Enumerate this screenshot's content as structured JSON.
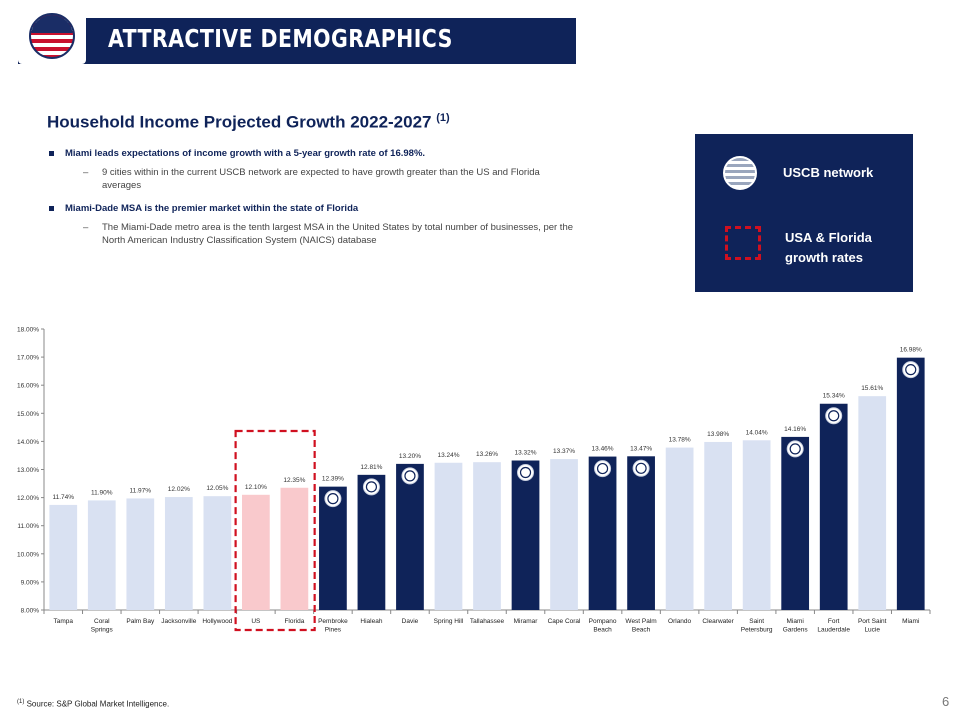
{
  "header": {
    "title": "ATTRACTIVE DEMOGRAPHICS",
    "logo_icon": "uscb-flag-globe-icon"
  },
  "section": {
    "title": "Household Income Projected Growth 2022-2027",
    "title_sup": "(1)",
    "bullets": [
      {
        "text": "Miami leads expectations of income growth with a 5-year growth rate of 16.98%.",
        "sub": "9 cities within in the current USCB network are expected to have growth greater than the US and Florida averages"
      },
      {
        "text": "Miami-Dade MSA is the premier market within the state of Florida",
        "sub": "The Miami-Dade metro area is the tenth largest MSA in the United States by total number of businesses, per the North American Industry Classification System (NAICS) database"
      }
    ]
  },
  "legend": {
    "network_label": "USCB network",
    "growth_label": "USA & Florida growth rates"
  },
  "colors": {
    "navy": "#0f2359",
    "light": "#d9e1f2",
    "pink": "#f9c9cc",
    "red_dash": "#d01020"
  },
  "chart_data": {
    "type": "bar",
    "title": "Household Income Projected Growth 2022-2027",
    "ylim": [
      8,
      18
    ],
    "yticks": [
      "8.00%",
      "9.00%",
      "10.00%",
      "11.00%",
      "12.00%",
      "13.00%",
      "14.00%",
      "15.00%",
      "16.00%",
      "17.00%",
      "18.00%"
    ],
    "categories": [
      "Tampa",
      "Coral Springs",
      "Palm Bay",
      "Jacksonville",
      "Hollywood",
      "US",
      "Florida",
      "Pembroke Pines",
      "Hialeah",
      "Davie",
      "Spring Hill",
      "Tallahassee",
      "Miramar",
      "Cape Coral",
      "Pompano Beach",
      "West Palm Beach",
      "Orlando",
      "Clearwater",
      "Saint Petersburg",
      "Miami Gardens",
      "Fort Lauderdale",
      "Port Saint Lucie",
      "Miami"
    ],
    "category_lines": [
      [
        "Tampa"
      ],
      [
        "Coral",
        "Springs"
      ],
      [
        "Palm Bay"
      ],
      [
        "Jacksonville"
      ],
      [
        "Hollywood"
      ],
      [
        "US"
      ],
      [
        "Florida"
      ],
      [
        "Pembroke",
        "Pines"
      ],
      [
        "Hialeah"
      ],
      [
        "Davie"
      ],
      [
        "Spring Hill"
      ],
      [
        "Tallahassee"
      ],
      [
        "Miramar"
      ],
      [
        "Cape Coral"
      ],
      [
        "Pompano",
        "Beach"
      ],
      [
        "West Palm",
        "Beach"
      ],
      [
        "Orlando"
      ],
      [
        "Clearwater"
      ],
      [
        "Saint",
        "Petersburg"
      ],
      [
        "Miami",
        "Gardens"
      ],
      [
        "Fort",
        "Lauderdale"
      ],
      [
        "Port Saint",
        "Lucie"
      ],
      [
        "Miami"
      ]
    ],
    "values": [
      11.74,
      11.9,
      11.97,
      12.02,
      12.05,
      12.1,
      12.35,
      12.39,
      12.81,
      13.2,
      13.24,
      13.26,
      13.32,
      13.37,
      13.46,
      13.47,
      13.78,
      13.98,
      14.04,
      14.16,
      15.34,
      15.61,
      16.98
    ],
    "labels": [
      "11.74%",
      "11.90%",
      "11.97%",
      "12.02%",
      "12.05%",
      "12.10%",
      "12.35%",
      "12.39%",
      "12.81%",
      "13.20%",
      "13.24%",
      "13.26%",
      "13.32%",
      "13.37%",
      "13.46%",
      "13.47%",
      "13.78%",
      "13.98%",
      "14.04%",
      "14.16%",
      "15.34%",
      "15.61%",
      "16.98%"
    ],
    "kind": [
      "other",
      "other",
      "other",
      "other",
      "other",
      "benchmark",
      "benchmark",
      "network",
      "network",
      "network",
      "other",
      "other",
      "network",
      "other",
      "network",
      "network",
      "other",
      "other",
      "other",
      "network",
      "network",
      "other",
      "network"
    ]
  },
  "footnote": {
    "sup": "(1)",
    "text": "Source: S&P Global Market Intelligence."
  },
  "page_number": "6"
}
